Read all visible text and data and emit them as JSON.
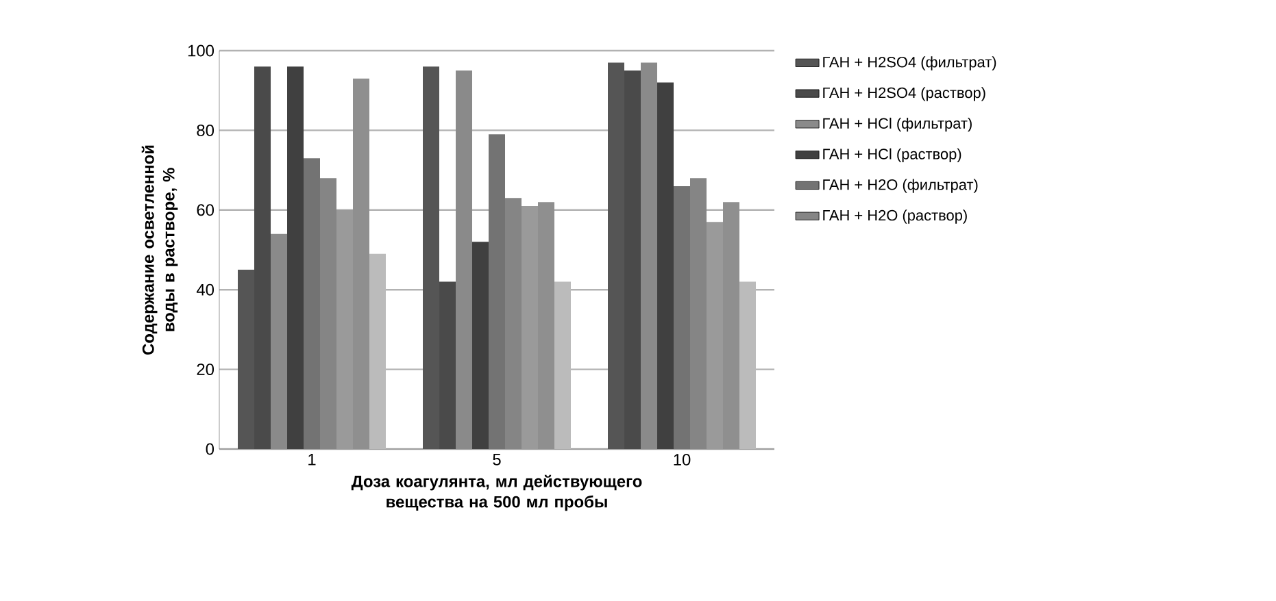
{
  "chart_data": {
    "type": "bar",
    "xlabel": "Доза коагулянта, мл действующего вещества на 500 мл пробы",
    "ylabel": "Содержание осветленной воды в растворе, %",
    "categories": [
      "1",
      "5",
      "10"
    ],
    "series": [
      {
        "name": "ГАН + H2SO4 (фильтрат)",
        "color": "#555555",
        "values": [
          45,
          96,
          97
        ]
      },
      {
        "name": "ГАН + H2SO4 (раствор)",
        "color": "#4a4a4a",
        "values": [
          96,
          42,
          95
        ]
      },
      {
        "name": "ГАН + HCl (фильтрат)",
        "color": "#8a8a8a",
        "values": [
          54,
          95,
          97
        ]
      },
      {
        "name": "ГАН + HCl (раствор)",
        "color": "#404040",
        "values": [
          96,
          52,
          92
        ]
      },
      {
        "name": "ГАН + H2O (фильтрат)",
        "color": "#737373",
        "values": [
          73,
          79,
          66
        ]
      },
      {
        "name": "ГАН + H2O (раствор)",
        "color": "#858585",
        "values": [
          68,
          63,
          68
        ]
      },
      {
        "color": "#9a9a9a",
        "values": [
          60,
          61,
          57
        ]
      },
      {
        "color": "#8f8f8f",
        "values": [
          93,
          62,
          62
        ]
      },
      {
        "color": "#bbbbbb",
        "values": [
          49,
          42,
          42
        ]
      }
    ],
    "ylim": [
      0,
      100
    ],
    "yticks": [
      0,
      20,
      40,
      60,
      80,
      100
    ],
    "grid": "y",
    "legend": "right"
  }
}
